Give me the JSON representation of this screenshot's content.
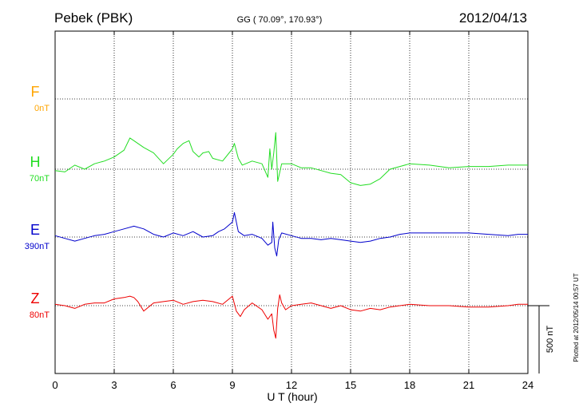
{
  "chart_data": {
    "type": "line",
    "title_station": "Pebek (PBK)",
    "title_coords": "GG ( 70.09°, 170.93°)",
    "title_date": "2012/04/13",
    "xlabel": "U T (hour)",
    "xlim": [
      0,
      24
    ],
    "x_ticks": [
      0,
      3,
      6,
      9,
      12,
      15,
      18,
      21,
      24
    ],
    "x_tick_labels": [
      "0",
      "3",
      "6",
      "9",
      "12",
      "15",
      "18",
      "21",
      "24"
    ],
    "grid": true,
    "plotted_note": "Plotted at 2012/05/14 00:57 UT",
    "scale_bar_label": "500 nT",
    "scale_bar_nT": 500,
    "series": [
      {
        "name": "F",
        "offset_label": "0nT",
        "color": "#ffa500",
        "baseline_level": 3,
        "x": [],
        "values": []
      },
      {
        "name": "H",
        "offset_label": "70nT",
        "color": "#22dd22",
        "baseline_level": 2,
        "x": [
          0,
          0.5,
          1,
          1.5,
          2,
          2.5,
          3,
          3.5,
          3.8,
          4,
          4.5,
          5,
          5.5,
          6,
          6.2,
          6.5,
          6.8,
          7,
          7.3,
          7.5,
          7.8,
          8,
          8.5,
          9,
          9.1,
          9.3,
          9.5,
          10,
          10.5,
          10.8,
          10.9,
          11,
          11.1,
          11.2,
          11.3,
          11.5,
          12,
          12.5,
          13,
          13.5,
          14,
          14.5,
          15,
          15.5,
          16,
          16.5,
          17,
          17.5,
          18,
          19,
          20,
          21,
          22,
          23,
          23.5,
          24
        ],
        "values": [
          -10,
          -20,
          30,
          0,
          40,
          60,
          90,
          140,
          230,
          210,
          160,
          120,
          40,
          110,
          150,
          190,
          210,
          130,
          90,
          120,
          130,
          80,
          60,
          150,
          190,
          80,
          30,
          60,
          40,
          -60,
          150,
          0,
          120,
          270,
          -90,
          40,
          40,
          10,
          10,
          -10,
          -30,
          -40,
          -100,
          -120,
          -110,
          -70,
          0,
          20,
          40,
          30,
          10,
          20,
          20,
          30,
          30,
          30
        ]
      },
      {
        "name": "E",
        "offset_label": "390nT",
        "color": "#0000cc",
        "baseline_level": 1,
        "x": [
          0,
          0.5,
          1,
          1.5,
          2,
          2.5,
          3,
          3.5,
          4,
          4.5,
          5,
          5.5,
          6,
          6.5,
          7,
          7.5,
          8,
          8.3,
          8.6,
          9,
          9.1,
          9.3,
          9.6,
          10,
          10.5,
          10.8,
          11,
          11.05,
          11.15,
          11.25,
          11.35,
          11.5,
          12,
          12.5,
          13,
          13.5,
          14,
          14.5,
          15,
          15.5,
          16,
          16.5,
          17,
          17.5,
          18,
          19,
          20,
          21,
          22,
          23,
          23.5,
          24
        ],
        "values": [
          10,
          -10,
          -30,
          -10,
          10,
          20,
          40,
          60,
          80,
          60,
          20,
          0,
          30,
          10,
          40,
          0,
          10,
          40,
          60,
          110,
          180,
          40,
          10,
          20,
          -10,
          -60,
          -40,
          110,
          -80,
          -140,
          -20,
          30,
          10,
          -10,
          -10,
          -20,
          -10,
          -20,
          -30,
          -40,
          -30,
          -10,
          0,
          20,
          30,
          30,
          30,
          30,
          20,
          10,
          20,
          20
        ]
      },
      {
        "name": "Z",
        "offset_label": "80nT",
        "color": "#ee0000",
        "baseline_level": 0,
        "x": [
          0,
          0.5,
          1,
          1.5,
          2,
          2.5,
          3,
          3.5,
          3.8,
          4,
          4.2,
          4.5,
          5,
          5.5,
          6,
          6.5,
          7,
          7.5,
          8,
          8.5,
          9,
          9.2,
          9.4,
          9.6,
          10,
          10.5,
          10.8,
          11,
          11.1,
          11.2,
          11.3,
          11.4,
          11.5,
          11.7,
          12,
          12.5,
          13,
          13.5,
          14,
          14.5,
          15,
          15.5,
          16,
          16.5,
          17,
          17.5,
          18,
          19,
          20,
          21,
          22,
          23,
          23.5,
          24
        ],
        "values": [
          10,
          0,
          -20,
          10,
          20,
          20,
          50,
          60,
          70,
          60,
          30,
          -40,
          20,
          30,
          40,
          10,
          30,
          40,
          30,
          10,
          70,
          -40,
          -80,
          -30,
          20,
          -30,
          -100,
          -60,
          -180,
          -240,
          -20,
          80,
          20,
          -30,
          0,
          10,
          20,
          0,
          -20,
          0,
          -30,
          -40,
          -20,
          -30,
          -10,
          0,
          10,
          0,
          0,
          -10,
          -10,
          0,
          10,
          10
        ]
      }
    ]
  }
}
